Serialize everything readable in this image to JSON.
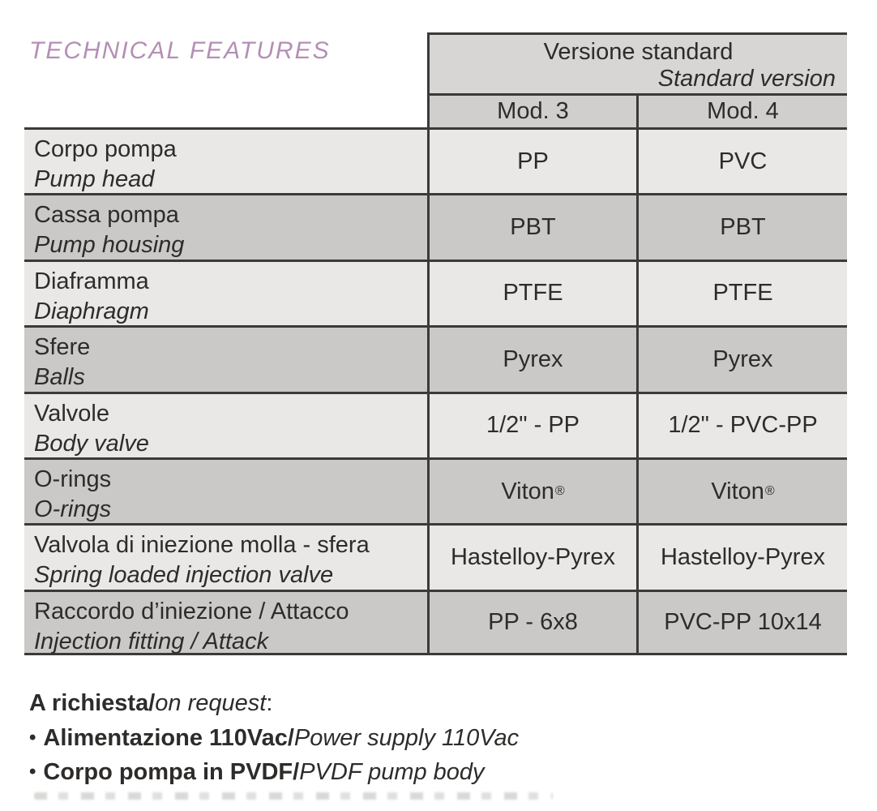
{
  "page": {
    "title": "TECHNICAL FEATURES"
  },
  "table": {
    "header": {
      "title_it": "Versione standard",
      "title_en": "Standard version",
      "col1": "Mod. 3",
      "col2": "Mod. 4"
    },
    "rows": [
      {
        "label_it": "Corpo pompa",
        "label_en": "Pump head",
        "mod3": "PP",
        "mod4": "PVC"
      },
      {
        "label_it": "Cassa pompa",
        "label_en": "Pump housing",
        "mod3": "PBT",
        "mod4": "PBT"
      },
      {
        "label_it": "Diaframma",
        "label_en": "Diaphragm",
        "mod3": "PTFE",
        "mod4": "PTFE"
      },
      {
        "label_it": "Sfere",
        "label_en": "Balls",
        "mod3": "Pyrex",
        "mod4": "Pyrex"
      },
      {
        "label_it": "Valvole",
        "label_en": "Body valve",
        "mod3": "1/2\" - PP",
        "mod4": "1/2\" - PVC-PP"
      },
      {
        "label_it": "O-rings",
        "label_en": "O-rings",
        "mod3": "Viton",
        "mod3_sup": "®",
        "mod4": "Viton",
        "mod4_sup": "®"
      },
      {
        "label_it": "Valvola di iniezione molla - sfera",
        "label_en": "Spring loaded injection valve",
        "mod3": "Hastelloy-Pyrex",
        "mod4": "Hastelloy-Pyrex"
      },
      {
        "label_it": "Raccordo d’iniezione / Attacco",
        "label_en": "Injection fitting / Attack",
        "mod3": "PP - 6x8",
        "mod4": "PVC-PP 10x14"
      }
    ]
  },
  "notes": {
    "bullet": "•",
    "heading_it": "A richiesta/",
    "heading_en": "on request",
    "heading_suffix": ":",
    "items": [
      {
        "it": "Alimentazione 110Vac/",
        "en": "Power supply 110Vac"
      },
      {
        "it": "Corpo pompa in PVDF/",
        "en": "PVDF pump body"
      }
    ]
  },
  "colors": {
    "title_purple": "#b48fb5",
    "border": "#3b3a38",
    "row_light": "#e9e8e6",
    "row_dark": "#cbc9c7",
    "header_bg": "#d8d6d4",
    "mod_row_bg": "#d1cfcd",
    "text": "#2e2c2a"
  }
}
